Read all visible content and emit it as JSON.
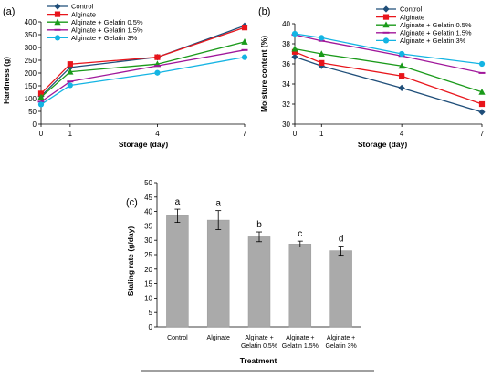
{
  "chart_data": [
    {
      "panel_label": "(a)",
      "type": "line",
      "x": [
        0,
        1,
        4,
        7
      ],
      "xlabel": "Storage (day)",
      "ylabel": "Hardness  (g)",
      "ylim": [
        0,
        400
      ],
      "yticks": [
        0,
        50,
        100,
        150,
        200,
        250,
        300,
        350,
        400
      ],
      "legend_position": "top-left",
      "grid": false,
      "series": [
        {
          "name": "Control",
          "color": "#1f4e79",
          "marker": "diamond",
          "values": [
            110,
            222,
            262,
            385
          ]
        },
        {
          "name": "Alginate",
          "color": "#e8151b",
          "marker": "square",
          "values": [
            120,
            235,
            262,
            378
          ]
        },
        {
          "name": "Alginate + Gelatin 0.5%",
          "color": "#1a9a1a",
          "marker": "triangle",
          "values": [
            106,
            205,
            235,
            322
          ]
        },
        {
          "name": "Alginate + Gelatin 1.5%",
          "color": "#a0169a",
          "marker": "dash",
          "values": [
            88,
            167,
            228,
            290
          ]
        },
        {
          "name": "Alginate + Gelatin 3%",
          "color": "#14b4e3",
          "marker": "circle",
          "values": [
            77,
            152,
            201,
            262
          ]
        }
      ]
    },
    {
      "panel_label": "(b)",
      "type": "line",
      "x": [
        0,
        1,
        4,
        7
      ],
      "xlabel": "Storage (day)",
      "ylabel": "Moisture content (%)",
      "ylim": [
        30,
        40
      ],
      "yticks": [
        30,
        32,
        34,
        36,
        38,
        40
      ],
      "legend_position": "top-right",
      "grid": false,
      "series": [
        {
          "name": "Control",
          "color": "#1f4e79",
          "marker": "diamond",
          "values": [
            36.7,
            35.8,
            33.6,
            31.2
          ]
        },
        {
          "name": "Alginate",
          "color": "#e8151b",
          "marker": "square",
          "values": [
            37.2,
            36.1,
            34.8,
            32.0
          ]
        },
        {
          "name": "Alginate + Gelatin 0.5%",
          "color": "#1a9a1a",
          "marker": "triangle",
          "values": [
            37.5,
            37.0,
            35.8,
            33.2
          ]
        },
        {
          "name": "Alginate + Gelatin 1.5%",
          "color": "#a0169a",
          "marker": "dash",
          "values": [
            38.9,
            38.3,
            36.8,
            35.1
          ]
        },
        {
          "name": "Alginate + Gelatin 3%",
          "color": "#14b4e3",
          "marker": "circle",
          "values": [
            39.0,
            38.6,
            37.0,
            36.0
          ]
        }
      ]
    },
    {
      "panel_label": "(c)",
      "type": "bar",
      "categories": [
        "Control",
        "Alginate",
        "Alginate + Gelatin 0.5%",
        "Alginate + Gelatin 1.5%",
        "Alginate + Gelatin 3%"
      ],
      "category_lines": [
        [
          "Control"
        ],
        [
          "Alginate"
        ],
        [
          "Alginate +",
          "Gelatin 0.5%"
        ],
        [
          "Alginate +",
          "Gelatin 1.5%"
        ],
        [
          "Alginate +",
          "Gelatin 3%"
        ]
      ],
      "values": [
        38.5,
        37.0,
        31.2,
        28.7,
        26.4
      ],
      "errors": [
        2.3,
        3.3,
        1.7,
        1.0,
        1.6
      ],
      "letters": [
        "a",
        "a",
        "b",
        "c",
        "d"
      ],
      "xlabel": "Treatment",
      "ylabel": "Staling rate (g/day)",
      "ylim": [
        0,
        50
      ],
      "yticks": [
        0,
        5,
        10,
        15,
        20,
        25,
        30,
        35,
        40,
        45,
        50
      ],
      "bar_color": "#aaaaaa",
      "grid": false
    }
  ]
}
